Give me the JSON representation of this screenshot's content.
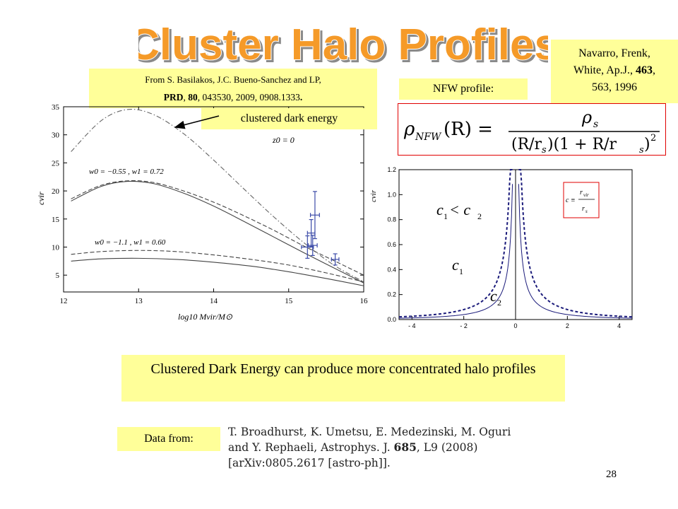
{
  "slide": {
    "title": "Cluster Halo Profiles",
    "citation_line1": "From S. Basilakos, J.C. Bueno-Sanchez and LP,",
    "citation_journal": "PRD",
    "citation_volume": "80",
    "citation_rest": ", 043530, 2009, 0908.1333",
    "clustered_label": "clustered dark energy",
    "nfw_label": "NFW profile:",
    "ref_line1": "Navarro, Frenk,",
    "ref_line2_a": "White, Ap.J., ",
    "ref_line2_b": "463",
    "ref_line2_c": ",",
    "ref_line3": "563, 1996",
    "conclusion": "Clustered Dark Energy can produce more concentrated halo profiles",
    "data_from_label": "Data from:",
    "paper_line1": "T. Broadhurst, K. Umetsu, E. Medezinski, M. Oguri",
    "paper_line2_a": "and Y. Rephaeli, Astrophys. J. ",
    "paper_line2_b": "685",
    "paper_line2_c": ", L9 (2008)",
    "paper_line3": "[arXiv:0805.2617 [astro-ph]].",
    "page_number": "28"
  },
  "formula": {
    "lhs_symbol": "ρ",
    "lhs_sub": "NFW",
    "lhs_arg": "(R) =",
    "num_symbol": "ρ",
    "num_sub": "s",
    "denominator": "(R/r",
    "den_sub1": "s",
    "den_mid": ")(1 + R/r",
    "den_sub2": "s",
    "den_end": ")",
    "den_exp": "2"
  },
  "chart_data": [
    {
      "type": "line",
      "xlabel": "log10 Mvir/M⊙",
      "ylabel": "cvir",
      "xlim": [
        12,
        16
      ],
      "ylim": [
        2,
        35
      ],
      "x_ticks": [
        "12",
        "13",
        "14",
        "15",
        "16"
      ],
      "y_ticks": [
        "5",
        "10",
        "15",
        "20",
        "25",
        "30",
        "35"
      ],
      "annotations": {
        "z0": "z0 = 0",
        "label_upper": "w0 = −0.55 ,  w1 = 0.72",
        "label_lower": "w0 = −1.1 ,  w1 = 0.60"
      },
      "series": [
        {
          "style": "dashdot",
          "x": [
            12.1,
            12.5,
            12.85,
            13.2,
            13.6,
            14.0,
            14.4,
            14.8,
            15.2,
            15.6,
            16.0
          ],
          "y": [
            27.0,
            32.5,
            34.5,
            33.6,
            30.2,
            25.5,
            20.4,
            15.4,
            10.8,
            6.8,
            3.8
          ]
        },
        {
          "style": "dashed",
          "x": [
            12.1,
            12.5,
            12.85,
            13.2,
            13.6,
            14.0,
            14.4,
            14.8,
            15.2,
            15.6,
            16.0
          ],
          "y": [
            18.6,
            21.0,
            21.8,
            21.5,
            20.0,
            18.0,
            15.6,
            13.0,
            10.2,
            7.6,
            5.0
          ]
        },
        {
          "style": "solid",
          "x": [
            12.1,
            12.5,
            12.85,
            13.2,
            13.6,
            14.0,
            14.4,
            14.8,
            15.2,
            15.6,
            16.0
          ],
          "y": [
            18.2,
            20.8,
            21.7,
            21.3,
            19.6,
            17.3,
            14.6,
            11.8,
            9.0,
            6.3,
            3.6
          ]
        },
        {
          "style": "dashed",
          "x": [
            12.1,
            12.5,
            13.0,
            13.5,
            14.0,
            14.5,
            15.0,
            15.5,
            16.0
          ],
          "y": [
            8.7,
            9.2,
            9.4,
            9.2,
            8.6,
            7.8,
            6.8,
            5.4,
            3.8
          ]
        },
        {
          "style": "solid",
          "x": [
            12.1,
            12.5,
            13.0,
            13.5,
            14.0,
            14.5,
            15.0,
            15.5,
            16.0
          ],
          "y": [
            7.5,
            7.9,
            8.0,
            7.8,
            7.3,
            6.6,
            5.6,
            4.4,
            3.1
          ]
        },
        {
          "style": "errorbars",
          "x": [
            15.25,
            15.32,
            15.3,
            15.35,
            15.62
          ],
          "y": [
            10.0,
            10.3,
            12.5,
            15.7,
            7.8
          ],
          "yerr": [
            2.0,
            1.8,
            2.4,
            4.2,
            1.0
          ],
          "xerr": [
            0.08,
            0.06,
            0.05,
            0.06,
            0.05
          ]
        }
      ]
    },
    {
      "type": "line",
      "ylabel": "cvir",
      "xlim": [
        -4.5,
        4.5
      ],
      "ylim": [
        0,
        1.2
      ],
      "x_ticks": [
        "- 4",
        "- 2",
        "0",
        "2",
        "4"
      ],
      "y_ticks": [
        "0.0",
        "0.2",
        "0.4",
        "0.6",
        "0.8",
        "1.0",
        "1.2"
      ],
      "annotations": {
        "ineq_c1": "c",
        "ineq_sub1": "1",
        "ineq_lt": " < c",
        "ineq_sub2": "2",
        "c1_c": "c",
        "c1_sub": "1",
        "c2_c": "c",
        "c2_sub": "2",
        "def_c": "c ≡",
        "def_num": "r",
        "def_num_sub": "vir",
        "def_den": "r",
        "def_den_sub": "s"
      },
      "series": [
        {
          "name": "c1",
          "style": "solid",
          "scale": 0.5
        },
        {
          "name": "c2",
          "style": "dashed",
          "scale": 1.0
        }
      ]
    }
  ]
}
